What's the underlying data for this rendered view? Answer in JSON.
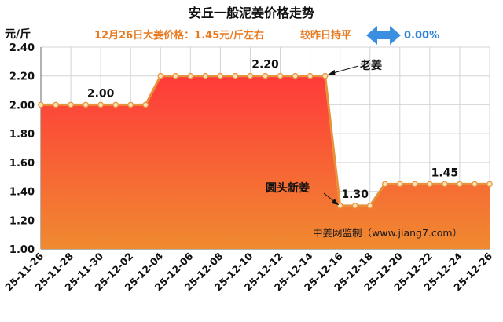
{
  "chart_data": {
    "type": "area",
    "title": "安丘一般泥姜价格走势",
    "subtitle_left": "12月26日大姜价格：1.45元/斤左右",
    "subtitle_right": "较昨日持平",
    "change_value": "0.00%",
    "ylabel": "元/斤",
    "ylim": [
      1.0,
      2.4
    ],
    "yticks": [
      "1.00",
      "1.20",
      "1.40",
      "1.60",
      "1.80",
      "2.00",
      "2.20",
      "2.40"
    ],
    "x": [
      "25-11-26",
      "25-11-27",
      "25-11-28",
      "25-11-29",
      "25-11-30",
      "25-12-01",
      "25-12-02",
      "25-12-03",
      "25-12-04",
      "25-12-05",
      "25-12-06",
      "25-12-07",
      "25-12-08",
      "25-12-09",
      "25-12-10",
      "25-12-11",
      "25-12-12",
      "25-12-13",
      "25-12-14",
      "25-12-15",
      "25-12-16",
      "25-12-17",
      "25-12-18",
      "25-12-19",
      "25-12-20",
      "25-12-21",
      "25-12-22",
      "25-12-23",
      "25-12-24",
      "25-12-25",
      "25-12-26"
    ],
    "xticks": [
      "25-11-26",
      "25-11-28",
      "25-11-30",
      "25-12-02",
      "25-12-04",
      "25-12-06",
      "25-12-08",
      "25-12-10",
      "25-12-12",
      "25-12-14",
      "25-12-16",
      "25-12-18",
      "25-12-20",
      "25-12-22",
      "25-12-24",
      "25-12-26"
    ],
    "values": [
      2.0,
      2.0,
      2.0,
      2.0,
      2.0,
      2.0,
      2.0,
      2.0,
      2.2,
      2.2,
      2.2,
      2.2,
      2.2,
      2.2,
      2.2,
      2.2,
      2.2,
      2.2,
      2.2,
      2.2,
      1.3,
      1.3,
      1.3,
      1.45,
      1.45,
      1.45,
      1.45,
      1.45,
      1.45,
      1.45,
      1.45
    ],
    "data_labels": [
      {
        "index": 4,
        "text": "2.00"
      },
      {
        "index": 15,
        "text": "2.20"
      },
      {
        "index": 21,
        "text": "1.30"
      },
      {
        "index": 27,
        "text": "1.45"
      }
    ],
    "annotations": [
      {
        "text": "老姜",
        "index": 19
      },
      {
        "text": "圆头新姜",
        "index": 20
      }
    ],
    "watermark": "中姜网监制（www.jiang7.com）",
    "grid": true,
    "colors": {
      "line": "#e8913c",
      "marker_fill": "#f6e2b8",
      "area_top": "#ff3a3a",
      "area_bottom": "#f08a30",
      "subtitle": "#e87b22",
      "change": "#2f84d6",
      "arrow": "#3b8fe0",
      "grid": "#d4d4d4"
    }
  }
}
